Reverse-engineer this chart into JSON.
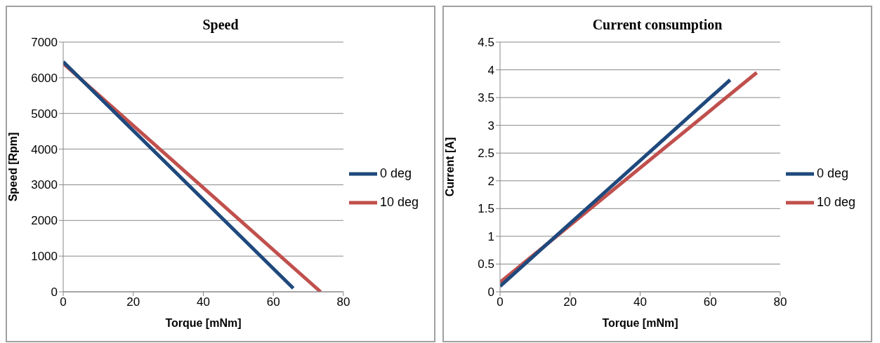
{
  "chart_data": [
    {
      "type": "line",
      "title": "Speed",
      "xlabel": "Torque [mNm]",
      "ylabel": "Speed [Rpm]",
      "xlim": [
        0,
        80
      ],
      "xticks": [
        0,
        20,
        40,
        60,
        80
      ],
      "ylim": [
        0,
        7000
      ],
      "yticks": [
        0,
        1000,
        2000,
        3000,
        4000,
        5000,
        6000,
        7000
      ],
      "grid": "y",
      "legend": "right",
      "marker": "none",
      "series": [
        {
          "name": "10 deg",
          "color": "#c0504d",
          "x": [
            0,
            73.5
          ],
          "values": [
            6400,
            0
          ]
        },
        {
          "name": "0 deg",
          "color": "#1f497d",
          "x": [
            0,
            65.7
          ],
          "values": [
            6450,
            100
          ]
        }
      ]
    },
    {
      "type": "line",
      "title": "Current consumption",
      "xlabel": "Torque [mNm]",
      "ylabel": "Current [A]",
      "xlim": [
        0,
        80
      ],
      "xticks": [
        0,
        20,
        40,
        60,
        80
      ],
      "ylim": [
        0,
        4.5
      ],
      "yticks": [
        0,
        0.5,
        1,
        1.5,
        2,
        2.5,
        3,
        3.5,
        4,
        4.5
      ],
      "grid": "y",
      "legend": "right",
      "marker": "none",
      "series": [
        {
          "name": "10 deg",
          "color": "#c0504d",
          "x": [
            0,
            73.3
          ],
          "values": [
            0.17,
            3.95
          ]
        },
        {
          "name": "0 deg",
          "color": "#1f497d",
          "x": [
            0,
            65.7
          ],
          "values": [
            0.1,
            3.82
          ]
        }
      ]
    }
  ]
}
